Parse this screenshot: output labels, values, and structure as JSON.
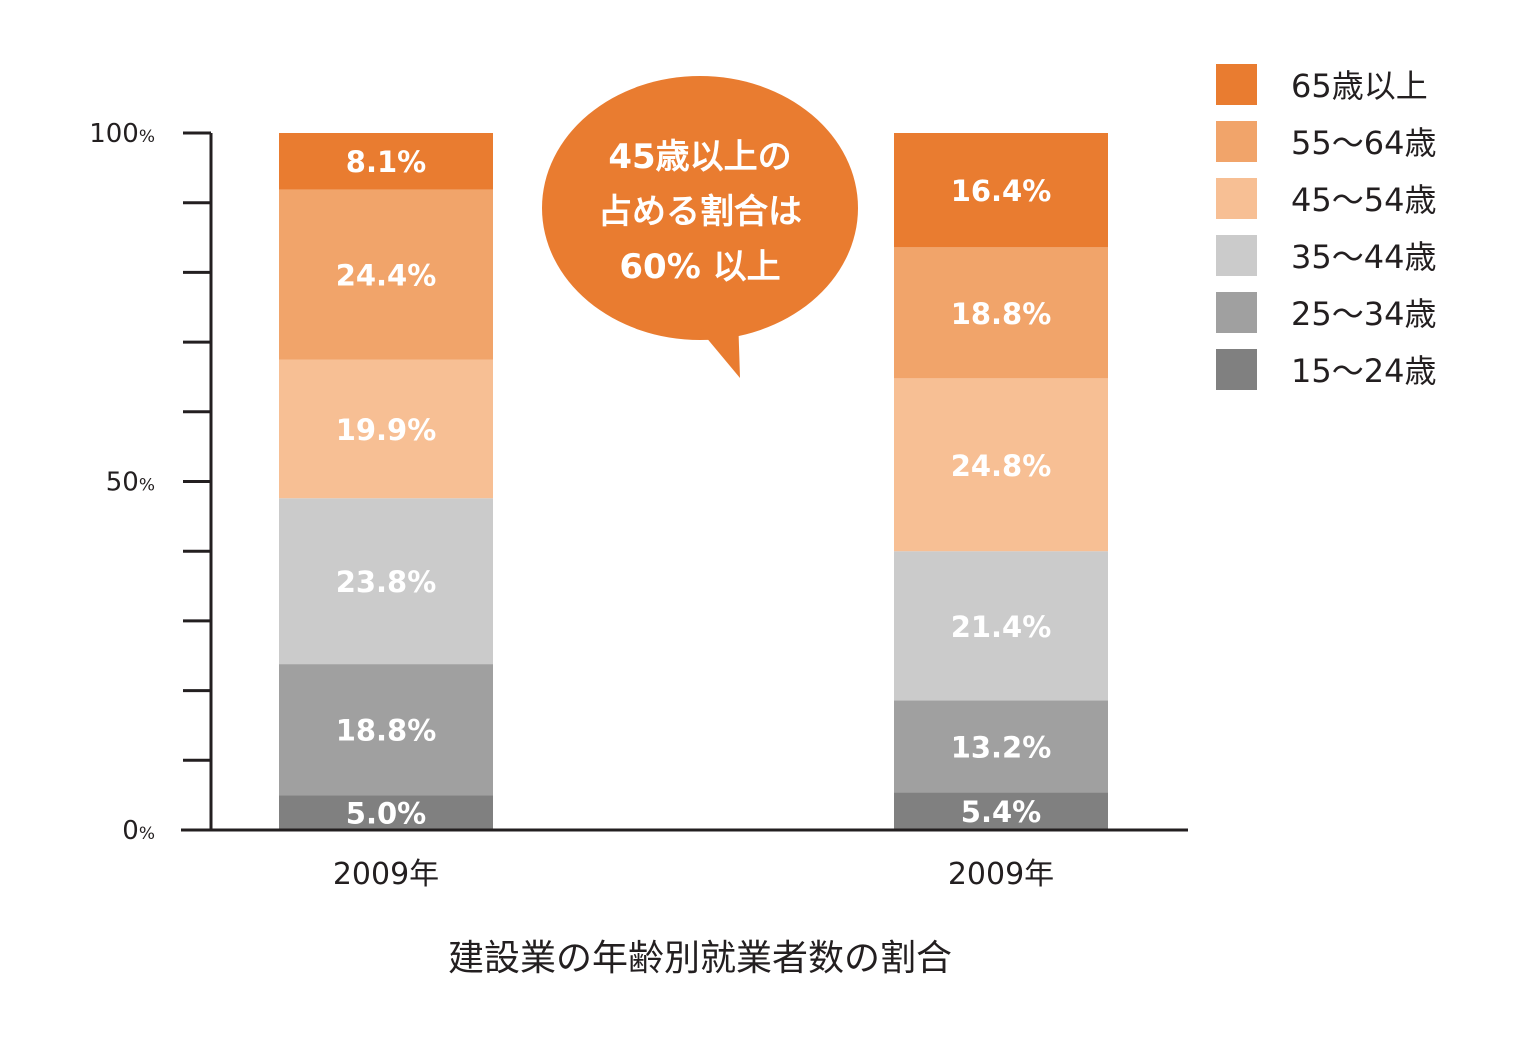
{
  "chart_data": {
    "type": "bar",
    "stacked": true,
    "title": "建設業の年齢別就業者数の割合",
    "categories": [
      "2009年",
      "2009年"
    ],
    "y_ticks": [
      "0",
      "50",
      "100"
    ],
    "y_unit": "%",
    "ylim": [
      0,
      100
    ],
    "series": [
      {
        "name": "15〜24歳",
        "color": "#808080",
        "values": [
          5.0,
          5.4
        ],
        "labels": [
          "5.0%",
          "5.4%"
        ]
      },
      {
        "name": "25〜34歳",
        "color": "#a0a0a0",
        "values": [
          18.8,
          13.2
        ],
        "labels": [
          "18.8%",
          "13.2%"
        ]
      },
      {
        "name": "35〜44歳",
        "color": "#cbcbcb",
        "values": [
          23.8,
          21.4
        ],
        "labels": [
          "23.8%",
          "21.4%"
        ]
      },
      {
        "name": "45〜54歳",
        "color": "#f7bf94",
        "values": [
          19.9,
          24.8
        ],
        "labels": [
          "19.9%",
          "24.8%"
        ]
      },
      {
        "name": "55〜64歳",
        "color": "#f1a46a",
        "values": [
          24.4,
          18.8
        ],
        "labels": [
          "24.4%",
          "18.8%"
        ]
      },
      {
        "name": "65歳以上",
        "color": "#e97c30",
        "values": [
          8.1,
          16.4
        ],
        "labels": [
          "8.1%",
          "16.4%"
        ]
      }
    ],
    "legend_position": "top-right",
    "callout": {
      "lines": [
        "45歳以上の",
        "占める割合は",
        "60% 以上"
      ],
      "color": "#e97c30"
    }
  }
}
